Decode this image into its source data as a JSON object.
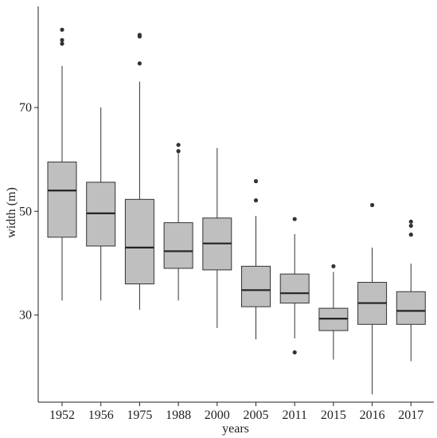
{
  "chart_data": {
    "type": "box",
    "title": "",
    "xlabel": "years",
    "ylabel": "width (m)",
    "categories": [
      "1952",
      "1956",
      "1975",
      "1988",
      "2000",
      "2005",
      "2011",
      "2015",
      "2016",
      "2017"
    ],
    "yticks": [
      30,
      50,
      70
    ],
    "ylim": [
      13.2,
      89.5
    ],
    "grid": false,
    "box_fill": "#bfbfbf",
    "line_color": "#333333",
    "boxes": [
      {
        "category": "1952",
        "whisker_low": 32.8,
        "q1": 45.0,
        "median": 54.0,
        "q3": 59.5,
        "whisker_high": 78.0,
        "outliers": [
          85.0,
          83.0,
          82.3
        ]
      },
      {
        "category": "1956",
        "whisker_low": 32.8,
        "q1": 43.3,
        "median": 49.6,
        "q3": 55.6,
        "whisker_high": 70.0,
        "outliers": []
      },
      {
        "category": "1975",
        "whisker_low": 31.0,
        "q1": 36.0,
        "median": 43.0,
        "q3": 52.3,
        "whisker_high": 75.0,
        "outliers": [
          84.0,
          83.7,
          78.5
        ]
      },
      {
        "category": "1988",
        "whisker_low": 32.8,
        "q1": 39.0,
        "median": 42.3,
        "q3": 47.8,
        "whisker_high": 61.2,
        "outliers": [
          62.8,
          61.6
        ]
      },
      {
        "category": "2000",
        "whisker_low": 27.5,
        "q1": 38.7,
        "median": 43.8,
        "q3": 48.7,
        "whisker_high": 62.2,
        "outliers": []
      },
      {
        "category": "2005",
        "whisker_low": 25.3,
        "q1": 31.6,
        "median": 34.8,
        "q3": 39.4,
        "whisker_high": 49.1,
        "outliers": [
          55.8,
          52.1
        ]
      },
      {
        "category": "2011",
        "whisker_low": 25.5,
        "q1": 32.3,
        "median": 34.2,
        "q3": 37.9,
        "whisker_high": 45.6,
        "outliers": [
          48.5,
          22.8
        ]
      },
      {
        "category": "2015",
        "whisker_low": 21.4,
        "q1": 27.0,
        "median": 29.3,
        "q3": 31.3,
        "whisker_high": 38.3,
        "outliers": [
          39.4
        ]
      },
      {
        "category": "2016",
        "whisker_low": 14.7,
        "q1": 28.2,
        "median": 32.3,
        "q3": 36.3,
        "whisker_high": 43.0,
        "outliers": [
          51.2
        ]
      },
      {
        "category": "2017",
        "whisker_low": 21.1,
        "q1": 28.2,
        "median": 30.8,
        "q3": 34.5,
        "whisker_high": 39.9,
        "outliers": [
          48.0,
          47.2,
          45.5
        ]
      }
    ]
  }
}
